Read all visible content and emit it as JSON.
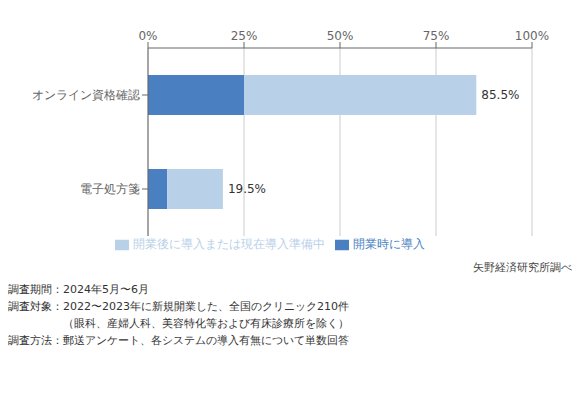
{
  "chart_data": {
    "type": "bar",
    "orientation": "horizontal",
    "stacked": true,
    "categories": [
      "オンライン資格確認",
      "電子処方箋"
    ],
    "series": [
      {
        "name": "開業時に導入",
        "color": "#4a7fc1",
        "values": [
          25.0,
          5.0
        ]
      },
      {
        "name": "開業後に導入または現在導入準備中",
        "color": "#b8d0e8",
        "values": [
          60.5,
          14.5
        ]
      }
    ],
    "annotations": [
      "85.5%",
      "19.5%"
    ],
    "xlim": [
      0,
      100
    ],
    "xticks": [
      {
        "value": 0,
        "label": "0%"
      },
      {
        "value": 25,
        "label": "25%"
      },
      {
        "value": 50,
        "label": "50%"
      },
      {
        "value": 75,
        "label": "75%"
      },
      {
        "value": 100,
        "label": "100%"
      }
    ],
    "grid": true,
    "legend": "bottom",
    "source": "矢野経済研究所調べ",
    "notes": [
      "調査期間：2024年5月〜6月",
      "調査対象：2022〜2023年に新規開業した、全国のクリニック210件",
      "　　　　　（眼科、産婦人科、美容特化等および有床診療所を除く）",
      "調査方法：郵送アンケート、各システムの導入有無について単数回答"
    ]
  }
}
